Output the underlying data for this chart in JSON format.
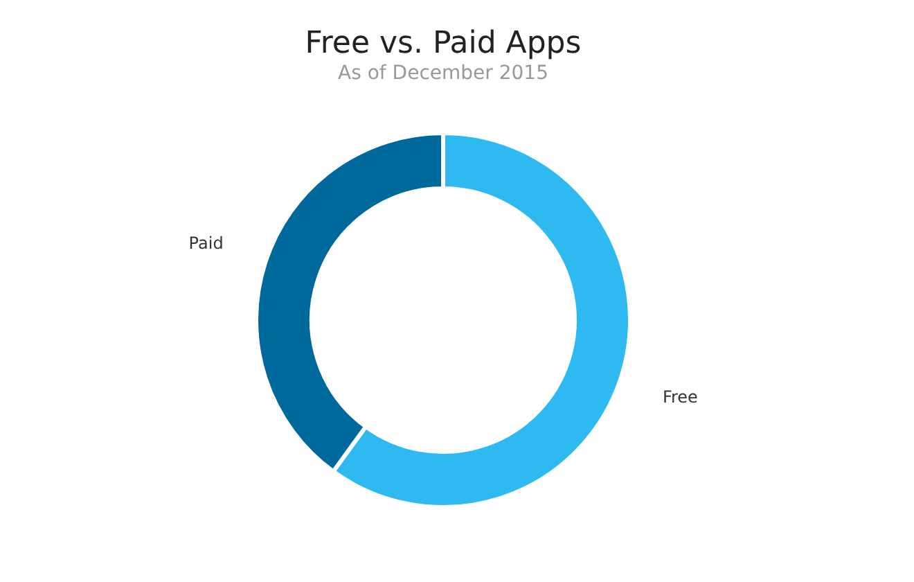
{
  "chart_data": {
    "type": "donut",
    "title": "Free vs. Paid Apps",
    "subtitle": "As of December 2015",
    "categories": [
      "Free",
      "Paid"
    ],
    "values": [
      60,
      40
    ],
    "colors": [
      "#2ebaf0",
      "#00699c"
    ],
    "legend": false
  }
}
